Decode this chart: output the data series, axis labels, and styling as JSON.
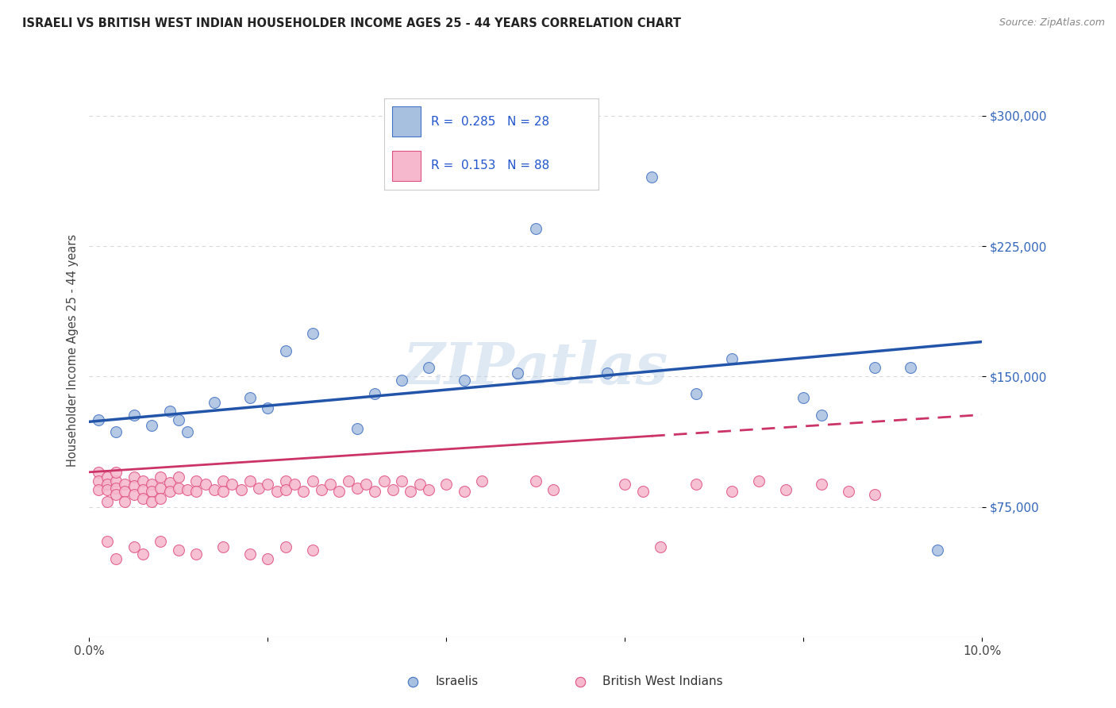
{
  "title": "ISRAELI VS BRITISH WEST INDIAN HOUSEHOLDER INCOME AGES 25 - 44 YEARS CORRELATION CHART",
  "source": "Source: ZipAtlas.com",
  "ylabel": "Householder Income Ages 25 - 44 years",
  "xlim": [
    0.0,
    0.1
  ],
  "ylim": [
    0,
    330000
  ],
  "yticks": [
    75000,
    150000,
    225000,
    300000
  ],
  "ytick_labels": [
    "$75,000",
    "$150,000",
    "$225,000",
    "$300,000"
  ],
  "xticks": [
    0.0,
    0.02,
    0.04,
    0.06,
    0.08,
    0.1
  ],
  "xtick_labels": [
    "0.0%",
    "",
    "",
    "",
    "",
    "10.0%"
  ],
  "background_color": "#ffffff",
  "grid_color": "#d8d8d8",
  "israeli_face_color": "#a8c0e0",
  "israeli_edge_color": "#4472c4",
  "bwi_face_color": "#f5b8cc",
  "bwi_edge_color": "#e05080",
  "israeli_line_color": "#2255aa",
  "bwi_line_color": "#cc3366",
  "watermark": "ZIPatlas",
  "israeli_x": [
    0.001,
    0.003,
    0.005,
    0.007,
    0.009,
    0.01,
    0.011,
    0.014,
    0.018,
    0.02,
    0.022,
    0.025,
    0.03,
    0.032,
    0.035,
    0.038,
    0.042,
    0.048,
    0.05,
    0.058,
    0.063,
    0.068,
    0.072,
    0.08,
    0.082,
    0.088,
    0.092,
    0.095
  ],
  "israeli_y": [
    125000,
    118000,
    128000,
    122000,
    130000,
    125000,
    118000,
    135000,
    138000,
    132000,
    165000,
    175000,
    120000,
    140000,
    148000,
    155000,
    148000,
    152000,
    235000,
    152000,
    265000,
    140000,
    160000,
    138000,
    128000,
    155000,
    155000,
    50000
  ],
  "bwi_x": [
    0.001,
    0.001,
    0.001,
    0.002,
    0.002,
    0.002,
    0.002,
    0.003,
    0.003,
    0.003,
    0.003,
    0.004,
    0.004,
    0.004,
    0.005,
    0.005,
    0.005,
    0.006,
    0.006,
    0.006,
    0.007,
    0.007,
    0.007,
    0.008,
    0.008,
    0.008,
    0.009,
    0.009,
    0.01,
    0.01,
    0.011,
    0.012,
    0.012,
    0.013,
    0.014,
    0.015,
    0.015,
    0.016,
    0.017,
    0.018,
    0.019,
    0.02,
    0.021,
    0.022,
    0.022,
    0.023,
    0.024,
    0.025,
    0.026,
    0.027,
    0.028,
    0.029,
    0.03,
    0.031,
    0.032,
    0.033,
    0.034,
    0.035,
    0.036,
    0.037,
    0.038,
    0.04,
    0.042,
    0.044,
    0.002,
    0.003,
    0.005,
    0.006,
    0.008,
    0.01,
    0.012,
    0.015,
    0.018,
    0.02,
    0.022,
    0.025,
    0.05,
    0.052,
    0.06,
    0.062,
    0.064,
    0.068,
    0.072,
    0.075,
    0.078,
    0.082,
    0.085,
    0.088
  ],
  "bwi_y": [
    95000,
    90000,
    85000,
    92000,
    88000,
    85000,
    78000,
    90000,
    86000,
    82000,
    95000,
    88000,
    84000,
    78000,
    92000,
    87000,
    82000,
    90000,
    85000,
    80000,
    88000,
    84000,
    78000,
    92000,
    86000,
    80000,
    89000,
    84000,
    92000,
    86000,
    85000,
    90000,
    84000,
    88000,
    85000,
    90000,
    84000,
    88000,
    85000,
    90000,
    86000,
    88000,
    84000,
    90000,
    85000,
    88000,
    84000,
    90000,
    85000,
    88000,
    84000,
    90000,
    86000,
    88000,
    84000,
    90000,
    85000,
    90000,
    84000,
    88000,
    85000,
    88000,
    84000,
    90000,
    55000,
    45000,
    52000,
    48000,
    55000,
    50000,
    48000,
    52000,
    48000,
    45000,
    52000,
    50000,
    90000,
    85000,
    88000,
    84000,
    52000,
    88000,
    84000,
    90000,
    85000,
    88000,
    84000,
    82000
  ]
}
